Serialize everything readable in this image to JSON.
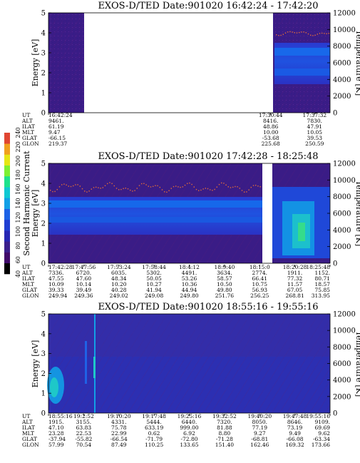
{
  "colorbar": {
    "label": "Second Harmonic Current",
    "ticks": [
      "40",
      "60",
      "80",
      "100",
      "120",
      "140",
      "160",
      "180",
      "200",
      "220",
      "240"
    ],
    "colors": [
      "#000000",
      "#400a6a",
      "#3a1e8c",
      "#2626b4",
      "#1f3ed2",
      "#1c62e6",
      "#12a0e6",
      "#10c8d2",
      "#1ee28c",
      "#7ef032",
      "#e6e614",
      "#f0a01e",
      "#e04632"
    ]
  },
  "chart_data": [
    {
      "type": "heatmap",
      "title": "EXOS-D/TED   Date:901020   16:42:24 - 17:42:20",
      "ylabel": "Energy [eV]",
      "ylim": [
        0,
        5
      ],
      "y_ticks": [
        "0",
        "1",
        "2",
        "3",
        "4",
        "5"
      ],
      "y2label": "Temperature [K]",
      "y2lim": [
        0,
        12000
      ],
      "y2_ticks": [
        "0",
        "2000",
        "4000",
        "6000",
        "8000",
        "10000",
        "12000"
      ],
      "data_gap": [
        "16:50",
        "17:30:44"
      ],
      "ephemeris": {
        "rows": [
          "UT",
          "ALT",
          "ILAT",
          "MLT",
          "GLAT",
          "GLON"
        ],
        "columns": [
          {
            "UT": "16:42:24",
            "ALT": "9461.",
            "ILAT": "61.19",
            "MLT": "9.47",
            "GLAT": "-66.15",
            "GLON": "219.37"
          },
          {
            "UT": "17:30:44",
            "ALT": "8416.",
            "ILAT": "48.86",
            "MLT": "10.00",
            "GLAT": "-53.68",
            "GLON": "225.68"
          },
          {
            "UT": "17:37:32",
            "ALT": "7830.",
            "ILAT": "47.91",
            "MLT": "10.05",
            "GLAT": "39.53",
            "GLON": "250.59"
          }
        ]
      }
    },
    {
      "type": "heatmap",
      "title": "EXOS-D/TED   Date:901020   17:42:28 - 18:25:48",
      "ylabel": "Energy [eV]",
      "ylim": [
        0,
        5
      ],
      "y_ticks": [
        "0",
        "1",
        "2",
        "3",
        "4",
        "5"
      ],
      "y2label": "Temperature [K]",
      "y2lim": [
        0,
        12000
      ],
      "y2_ticks": [
        "0",
        "2000",
        "4000",
        "6000",
        "8000",
        "10000",
        "12000"
      ],
      "data_gap": [
        "18:15:0",
        "18:20:28"
      ],
      "ephemeris": {
        "rows": [
          "UT",
          "ALT",
          "ILAT",
          "MLT",
          "GLAT",
          "GLON"
        ],
        "columns": [
          {
            "UT": "17:42:28",
            "ALT": "7336.",
            "ILAT": "47.55",
            "MLT": "10.09",
            "GLAT": "39.33",
            "GLON": "249.94"
          },
          {
            "UT": "17:47:56",
            "ALT": "6720.",
            "ILAT": "47.60",
            "MLT": "10.14",
            "GLAT": "39.49",
            "GLON": "249.36"
          },
          {
            "UT": "17:53:24",
            "ALT": "6035.",
            "ILAT": "48.34",
            "MLT": "10.20",
            "GLAT": "40.28",
            "GLON": "249.02"
          },
          {
            "UT": "17:58:44",
            "ALT": "5302.",
            "ILAT": "50.05",
            "MLT": "10.27",
            "GLAT": "41.94",
            "GLON": "249.08"
          },
          {
            "UT": "18:4:12",
            "ALT": "4491.",
            "ILAT": "53.26",
            "MLT": "10.36",
            "GLAT": "44.94",
            "GLON": "249.80"
          },
          {
            "UT": "18:9:40",
            "ALT": "3634.",
            "ILAT": "58.57",
            "MLT": "10.50",
            "GLAT": "49.80",
            "GLON": "251.76"
          },
          {
            "UT": "18:15:0",
            "ALT": "2774.",
            "ILAT": "66.41",
            "MLT": "10.75",
            "GLAT": "56.93",
            "GLON": "256.25"
          },
          {
            "UT": "18:20:28",
            "ALT": "1911.",
            "ILAT": "77.32",
            "MLT": "11.57",
            "GLAT": "67.05",
            "GLON": "268.81"
          },
          {
            "UT": "18:25:48",
            "ALT": "1152.",
            "ILAT": "80.71",
            "MLT": "18.57",
            "GLAT": "75.85",
            "GLON": "313.95"
          }
        ]
      }
    },
    {
      "type": "heatmap",
      "title": "EXOS-D/TED   Date:901020   18:55:16 - 19:55:16",
      "ylabel": "Energy [eV]",
      "ylim": [
        0,
        5
      ],
      "y_ticks": [
        "0",
        "1",
        "2",
        "3",
        "4",
        "5"
      ],
      "y2label": "Temperature [K]",
      "y2lim": [
        0,
        12000
      ],
      "y2_ticks": [
        "0",
        "2000",
        "4000",
        "6000",
        "8000",
        "10000",
        "12000"
      ],
      "ephemeris": {
        "rows": [
          "UT",
          "ALT",
          "ILAT",
          "MLT",
          "GLAT",
          "GLON"
        ],
        "columns": [
          {
            "UT": "18:55:16",
            "ALT": "1915.",
            "ILAT": "47.10",
            "MLT": "23.28",
            "GLAT": "-37.94",
            "GLON": "57.99"
          },
          {
            "UT": "19:2:52",
            "ALT": "3155.",
            "ILAT": "63.83",
            "MLT": "22.53",
            "GLAT": "-55.82",
            "GLON": "70.54"
          },
          {
            "UT": "19:10:20",
            "ALT": "4331.",
            "ILAT": "75.78",
            "MLT": "22.99",
            "GLAT": "-66.54",
            "GLON": "87.49"
          },
          {
            "UT": "19:17:48",
            "ALT": "5444.",
            "ILAT": "633.19",
            "MLT": "0.62",
            "GLAT": "-71.79",
            "GLON": "110.25"
          },
          {
            "UT": "19:25:16",
            "ALT": "6440.",
            "ILAT": "999.00",
            "MLT": "6.92",
            "GLAT": "-72.80",
            "GLON": "133.65"
          },
          {
            "UT": "19:32:52",
            "ALT": "7320.",
            "ILAT": "81.88",
            "MLT": "8.80",
            "GLAT": "-71.28",
            "GLON": "151.40"
          },
          {
            "UT": "19:40:20",
            "ALT": "8050.",
            "ILAT": "77.19",
            "MLT": "9.27",
            "GLAT": "-68.81",
            "GLON": "162.46"
          },
          {
            "UT": "19:47:48",
            "ALT": "8646.",
            "ILAT": "73.19",
            "MLT": "9.49",
            "GLAT": "-66.08",
            "GLON": "169.32"
          },
          {
            "UT": "19:55:16",
            "ALT": "9109.",
            "ILAT": "69.69",
            "MLT": "9.62",
            "GLAT": "-63.34",
            "GLON": "173.66"
          }
        ]
      }
    }
  ]
}
